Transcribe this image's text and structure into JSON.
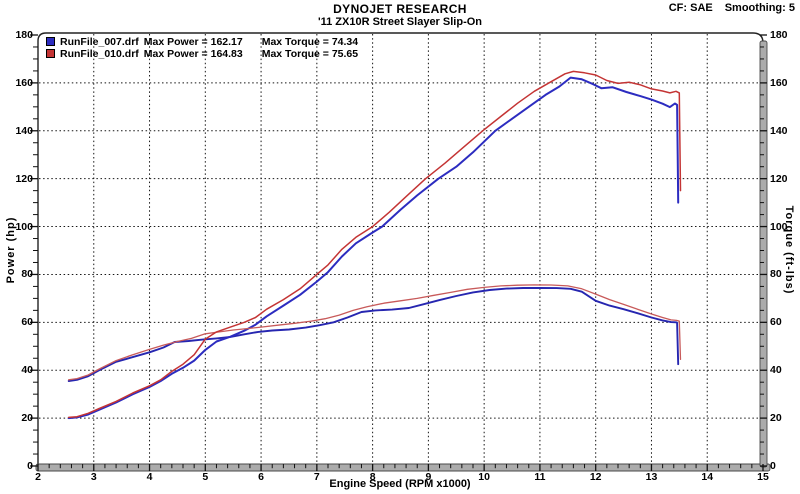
{
  "header": {
    "title": "DYNOJET RESEARCH",
    "subtitle": "'11 ZX10R Street Slayer Slip-On",
    "correction_label": "CF: SAE",
    "smoothing_label": "Smoothing: 5"
  },
  "chart_data": {
    "type": "line",
    "title": "DYNOJET RESEARCH",
    "subtitle": "'11 ZX10R Street Slayer Slip-On",
    "correction": "CF: SAE",
    "smoothing": "Smoothing: 5",
    "grid": true,
    "legend_position": "top-left",
    "x_axis": {
      "label": "Engine Speed (RPM x1000)",
      "min": 2,
      "max": 15,
      "ticks": [
        2,
        3,
        4,
        5,
        6,
        7,
        8,
        9,
        10,
        11,
        12,
        13,
        14,
        15
      ],
      "minor_step": 0.2
    },
    "y_left": {
      "label": "Power (hp)",
      "min": 0,
      "max": 180,
      "ticks": [
        0,
        20,
        40,
        60,
        80,
        100,
        120,
        140,
        160,
        180
      ],
      "minor_step": 5
    },
    "y_right": {
      "label": "Torque (ft-lbs)",
      "min": 0,
      "max": 180,
      "ticks": [
        0,
        20,
        40,
        60,
        80,
        100,
        120,
        140,
        160,
        180
      ],
      "minor_step": 5
    },
    "series": [
      {
        "name": "RunFile_007.drf",
        "max_power": 162.17,
        "max_torque": 74.34,
        "max_power_label": "Max Power = 162.17",
        "max_torque_label": "Max Torque = 74.34",
        "power_color": "#2c2cc0",
        "torque_color": "#2626b0",
        "power": [
          [
            2.55,
            20
          ],
          [
            2.7,
            20.3
          ],
          [
            2.9,
            21.5
          ],
          [
            3.1,
            23.5
          ],
          [
            3.4,
            26.5
          ],
          [
            3.7,
            30
          ],
          [
            4.0,
            33
          ],
          [
            4.2,
            35.5
          ],
          [
            4.4,
            38.5
          ],
          [
            4.6,
            41
          ],
          [
            4.8,
            44
          ],
          [
            5.0,
            48.5
          ],
          [
            5.2,
            52
          ],
          [
            5.45,
            54
          ],
          [
            5.7,
            56.5
          ],
          [
            5.9,
            59
          ],
          [
            6.1,
            62.5
          ],
          [
            6.4,
            67
          ],
          [
            6.7,
            71.5
          ],
          [
            7.0,
            77
          ],
          [
            7.2,
            81
          ],
          [
            7.45,
            87.5
          ],
          [
            7.7,
            93
          ],
          [
            8.0,
            97.5
          ],
          [
            8.17,
            100
          ],
          [
            8.5,
            107
          ],
          [
            8.8,
            113
          ],
          [
            9.18,
            120
          ],
          [
            9.5,
            125
          ],
          [
            9.8,
            131
          ],
          [
            10.2,
            140
          ],
          [
            10.5,
            145
          ],
          [
            10.8,
            150
          ],
          [
            11.1,
            155
          ],
          [
            11.35,
            158.5
          ],
          [
            11.55,
            162.2
          ],
          [
            11.75,
            161.5
          ],
          [
            11.95,
            159.5
          ],
          [
            12.1,
            157.8
          ],
          [
            12.3,
            158.2
          ],
          [
            12.55,
            156.2
          ],
          [
            12.8,
            154.5
          ],
          [
            13.0,
            153
          ],
          [
            13.2,
            151.3
          ],
          [
            13.33,
            149.9
          ],
          [
            13.42,
            151.4
          ],
          [
            13.46,
            150.8
          ],
          [
            13.47,
            130
          ],
          [
            13.48,
            110
          ]
        ],
        "torque": [
          [
            2.55,
            35.5
          ],
          [
            2.7,
            36
          ],
          [
            2.9,
            37.5
          ],
          [
            3.1,
            40
          ],
          [
            3.4,
            43.5
          ],
          [
            3.7,
            45.5
          ],
          [
            4.0,
            47.5
          ],
          [
            4.25,
            49.5
          ],
          [
            4.45,
            51.8
          ],
          [
            4.7,
            52.2
          ],
          [
            4.95,
            52.8
          ],
          [
            5.2,
            53.3
          ],
          [
            5.45,
            53.9
          ],
          [
            5.7,
            55
          ],
          [
            5.95,
            56
          ],
          [
            6.2,
            56.6
          ],
          [
            6.5,
            57
          ],
          [
            6.8,
            57.8
          ],
          [
            7.05,
            58.8
          ],
          [
            7.3,
            60
          ],
          [
            7.55,
            62
          ],
          [
            7.8,
            64.3
          ],
          [
            8.05,
            65
          ],
          [
            8.35,
            65.3
          ],
          [
            8.65,
            66
          ],
          [
            8.9,
            67.5
          ],
          [
            9.2,
            69.3
          ],
          [
            9.5,
            71
          ],
          [
            9.8,
            72.5
          ],
          [
            10.1,
            73.5
          ],
          [
            10.4,
            74.1
          ],
          [
            10.7,
            74.34
          ],
          [
            11.0,
            74.34
          ],
          [
            11.3,
            74.3
          ],
          [
            11.55,
            74
          ],
          [
            11.75,
            72.8
          ],
          [
            12.0,
            69
          ],
          [
            12.25,
            67
          ],
          [
            12.5,
            65.5
          ],
          [
            12.75,
            63.8
          ],
          [
            13.0,
            62
          ],
          [
            13.2,
            60.8
          ],
          [
            13.35,
            60.1
          ],
          [
            13.44,
            60
          ],
          [
            13.46,
            59.8
          ],
          [
            13.48,
            42.5
          ]
        ]
      },
      {
        "name": "RunFile_010.drf",
        "max_power": 164.83,
        "max_torque": 75.65,
        "max_power_label": "Max Power = 164.83",
        "max_torque_label": "Max Torque = 75.65",
        "power_color": "#c43434",
        "torque_color": "#c85a5a",
        "power": [
          [
            2.55,
            20.3
          ],
          [
            2.7,
            20.6
          ],
          [
            2.9,
            22
          ],
          [
            3.1,
            24
          ],
          [
            3.4,
            27
          ],
          [
            3.7,
            30.5
          ],
          [
            4.0,
            33.5
          ],
          [
            4.2,
            36
          ],
          [
            4.4,
            39.5
          ],
          [
            4.6,
            42.5
          ],
          [
            4.8,
            46.5
          ],
          [
            5.0,
            53
          ],
          [
            5.2,
            56
          ],
          [
            5.45,
            58
          ],
          [
            5.7,
            60
          ],
          [
            5.9,
            62
          ],
          [
            6.1,
            65.5
          ],
          [
            6.4,
            69.5
          ],
          [
            6.7,
            74
          ],
          [
            7.0,
            80
          ],
          [
            7.2,
            84
          ],
          [
            7.45,
            90.5
          ],
          [
            7.7,
            95.5
          ],
          [
            8.0,
            100
          ],
          [
            8.3,
            106
          ],
          [
            8.6,
            112.5
          ],
          [
            8.95,
            120
          ],
          [
            9.3,
            126.5
          ],
          [
            9.6,
            132.5
          ],
          [
            10.0,
            140.5
          ],
          [
            10.3,
            146
          ],
          [
            10.6,
            151.5
          ],
          [
            10.9,
            156.5
          ],
          [
            11.2,
            160.5
          ],
          [
            11.45,
            163.8
          ],
          [
            11.6,
            164.8
          ],
          [
            11.8,
            164.2
          ],
          [
            12.0,
            163.3
          ],
          [
            12.2,
            161
          ],
          [
            12.4,
            159.8
          ],
          [
            12.6,
            160.3
          ],
          [
            12.8,
            159.2
          ],
          [
            13.0,
            157.5
          ],
          [
            13.2,
            156.6
          ],
          [
            13.33,
            155.8
          ],
          [
            13.44,
            156.5
          ],
          [
            13.5,
            155.8
          ],
          [
            13.51,
            135
          ],
          [
            13.52,
            115
          ]
        ],
        "torque": [
          [
            2.55,
            36
          ],
          [
            2.7,
            36.5
          ],
          [
            2.9,
            38
          ],
          [
            3.1,
            40.5
          ],
          [
            3.4,
            44
          ],
          [
            3.7,
            46.5
          ],
          [
            4.0,
            48.7
          ],
          [
            4.25,
            50.5
          ],
          [
            4.5,
            52
          ],
          [
            4.75,
            53.3
          ],
          [
            5.0,
            55.2
          ],
          [
            5.25,
            56
          ],
          [
            5.5,
            56.8
          ],
          [
            5.75,
            57.4
          ],
          [
            6.0,
            58
          ],
          [
            6.3,
            58.8
          ],
          [
            6.6,
            59.6
          ],
          [
            6.9,
            60.5
          ],
          [
            7.15,
            61.5
          ],
          [
            7.4,
            63
          ],
          [
            7.65,
            65
          ],
          [
            7.9,
            66.5
          ],
          [
            8.2,
            68
          ],
          [
            8.5,
            69
          ],
          [
            8.8,
            70
          ],
          [
            9.1,
            71.3
          ],
          [
            9.4,
            72.5
          ],
          [
            9.7,
            73.8
          ],
          [
            10.0,
            74.6
          ],
          [
            10.3,
            75.2
          ],
          [
            10.6,
            75.5
          ],
          [
            10.9,
            75.65
          ],
          [
            11.2,
            75.6
          ],
          [
            11.5,
            75.2
          ],
          [
            11.75,
            74
          ],
          [
            12.0,
            71.8
          ],
          [
            12.25,
            69.5
          ],
          [
            12.5,
            67.5
          ],
          [
            12.75,
            65.5
          ],
          [
            13.0,
            63.5
          ],
          [
            13.2,
            62
          ],
          [
            13.35,
            61
          ],
          [
            13.45,
            60.8
          ],
          [
            13.5,
            60.5
          ],
          [
            13.52,
            44.5
          ]
        ]
      }
    ]
  }
}
